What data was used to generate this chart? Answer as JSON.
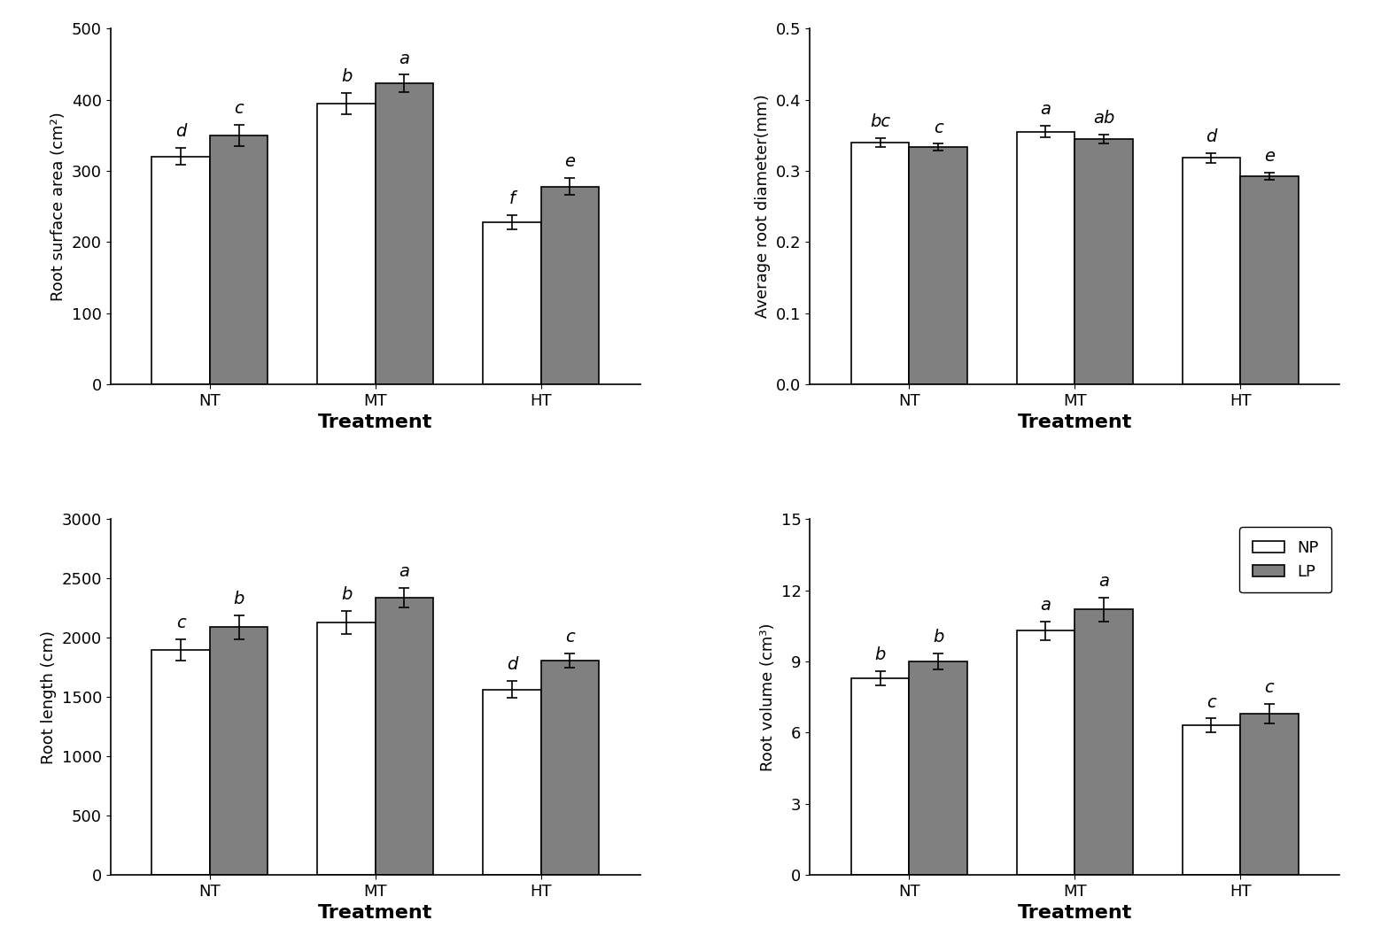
{
  "subplot1": {
    "title": "",
    "ylabel": "Root surface area (cm²)",
    "xlabel": "Treatment",
    "categories": [
      "NT",
      "MT",
      "HT"
    ],
    "NP_values": [
      320,
      395,
      228
    ],
    "LP_values": [
      350,
      423,
      278
    ],
    "NP_errors": [
      12,
      15,
      10
    ],
    "LP_errors": [
      15,
      12,
      12
    ],
    "NP_labels": [
      "d",
      "b",
      "f"
    ],
    "LP_labels": [
      "c",
      "a",
      "e"
    ],
    "ylim": [
      0,
      500
    ],
    "yticks": [
      0,
      100,
      200,
      300,
      400,
      500
    ]
  },
  "subplot2": {
    "title": "",
    "ylabel": "Average root diameter(mm)",
    "xlabel": "Treatment",
    "categories": [
      "NT",
      "MT",
      "HT"
    ],
    "NP_values": [
      0.34,
      0.355,
      0.318
    ],
    "LP_values": [
      0.333,
      0.345,
      0.292
    ],
    "NP_errors": [
      0.006,
      0.008,
      0.007
    ],
    "LP_errors": [
      0.005,
      0.006,
      0.005
    ],
    "NP_labels": [
      "bc",
      "a",
      "d"
    ],
    "LP_labels": [
      "c",
      "ab",
      "e"
    ],
    "ylim": [
      0.0,
      0.5
    ],
    "yticks": [
      0.0,
      0.1,
      0.2,
      0.3,
      0.4,
      0.5
    ]
  },
  "subplot3": {
    "title": "",
    "ylabel": "Root length (cm)",
    "xlabel": "Treatment",
    "categories": [
      "NT",
      "MT",
      "HT"
    ],
    "NP_values": [
      1900,
      2130,
      1565
    ],
    "LP_values": [
      2090,
      2340,
      1810
    ],
    "NP_errors": [
      90,
      100,
      70
    ],
    "LP_errors": [
      100,
      80,
      60
    ],
    "NP_labels": [
      "c",
      "b",
      "d"
    ],
    "LP_labels": [
      "b",
      "a",
      "c"
    ],
    "ylim": [
      0,
      3000
    ],
    "yticks": [
      0,
      500,
      1000,
      1500,
      2000,
      2500,
      3000
    ]
  },
  "subplot4": {
    "title": "",
    "ylabel": "Root volume (cm³)",
    "xlabel": "Treatment",
    "categories": [
      "NT",
      "MT",
      "HT"
    ],
    "NP_values": [
      8.3,
      10.3,
      6.3
    ],
    "LP_values": [
      9.0,
      11.2,
      6.8
    ],
    "NP_errors": [
      0.3,
      0.4,
      0.3
    ],
    "LP_errors": [
      0.35,
      0.5,
      0.4
    ],
    "NP_labels": [
      "b",
      "a",
      "c"
    ],
    "LP_labels": [
      "b",
      "a",
      "c"
    ],
    "ylim": [
      0,
      15
    ],
    "yticks": [
      0,
      3,
      6,
      9,
      12,
      15
    ]
  },
  "bar_width": 0.35,
  "NP_color": "white",
  "LP_color": "#808080",
  "edge_color": "black",
  "label_fontsize": 13,
  "tick_fontsize": 13,
  "annot_fontsize": 14,
  "xlabel_fontsize": 16,
  "ylabel_fontsize": 13,
  "legend_labels": [
    "NP",
    "LP"
  ]
}
